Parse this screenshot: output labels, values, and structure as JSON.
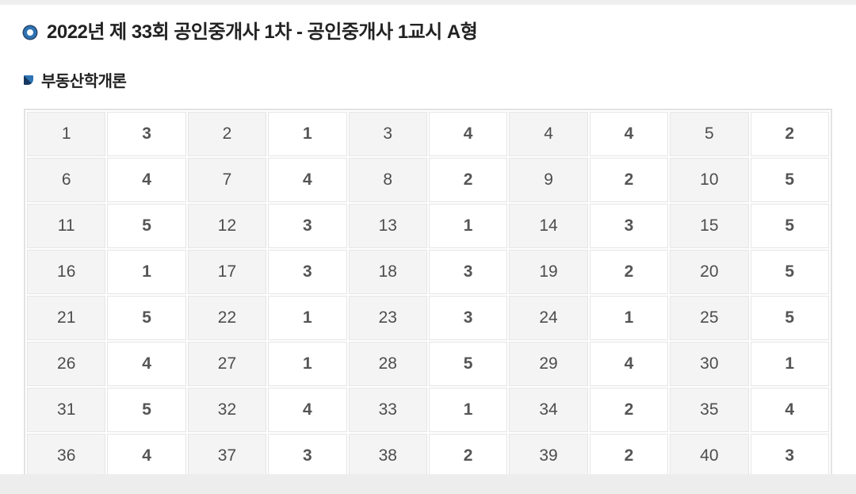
{
  "page": {
    "title": "2022년 제 33회 공인중개사 1차 - 공인중개사 1교시 A형",
    "section_title": "부동산학개론"
  },
  "icons": {
    "title_bullet": "bullet-circle-icon",
    "section_bullet": "corner-square-icon"
  },
  "colors": {
    "accent_blue": "#2e74b5",
    "icon_navy": "#17375e",
    "title_text": "#222222",
    "cell_text": "#4d4d4d",
    "answer_text": "#555555",
    "question_cell_bg": "#f4f4f4",
    "answer_cell_bg": "#ffffff",
    "cell_border": "#e5e5e5",
    "page_strip": "#ededed"
  },
  "answer_table": {
    "rows": [
      [
        {
          "question": "1",
          "answer": "3"
        },
        {
          "question": "2",
          "answer": "1"
        },
        {
          "question": "3",
          "answer": "4"
        },
        {
          "question": "4",
          "answer": "4"
        },
        {
          "question": "5",
          "answer": "2"
        }
      ],
      [
        {
          "question": "6",
          "answer": "4"
        },
        {
          "question": "7",
          "answer": "4"
        },
        {
          "question": "8",
          "answer": "2"
        },
        {
          "question": "9",
          "answer": "2"
        },
        {
          "question": "10",
          "answer": "5"
        }
      ],
      [
        {
          "question": "11",
          "answer": "5"
        },
        {
          "question": "12",
          "answer": "3"
        },
        {
          "question": "13",
          "answer": "1"
        },
        {
          "question": "14",
          "answer": "3"
        },
        {
          "question": "15",
          "answer": "5"
        }
      ],
      [
        {
          "question": "16",
          "answer": "1"
        },
        {
          "question": "17",
          "answer": "3"
        },
        {
          "question": "18",
          "answer": "3"
        },
        {
          "question": "19",
          "answer": "2"
        },
        {
          "question": "20",
          "answer": "5"
        }
      ],
      [
        {
          "question": "21",
          "answer": "5"
        },
        {
          "question": "22",
          "answer": "1"
        },
        {
          "question": "23",
          "answer": "3"
        },
        {
          "question": "24",
          "answer": "1"
        },
        {
          "question": "25",
          "answer": "5"
        }
      ],
      [
        {
          "question": "26",
          "answer": "4"
        },
        {
          "question": "27",
          "answer": "1"
        },
        {
          "question": "28",
          "answer": "5"
        },
        {
          "question": "29",
          "answer": "4"
        },
        {
          "question": "30",
          "answer": "1"
        }
      ],
      [
        {
          "question": "31",
          "answer": "5"
        },
        {
          "question": "32",
          "answer": "4"
        },
        {
          "question": "33",
          "answer": "1"
        },
        {
          "question": "34",
          "answer": "2"
        },
        {
          "question": "35",
          "answer": "4"
        }
      ],
      [
        {
          "question": "36",
          "answer": "4"
        },
        {
          "question": "37",
          "answer": "3"
        },
        {
          "question": "38",
          "answer": "2"
        },
        {
          "question": "39",
          "answer": "2"
        },
        {
          "question": "40",
          "answer": "3"
        }
      ]
    ]
  }
}
